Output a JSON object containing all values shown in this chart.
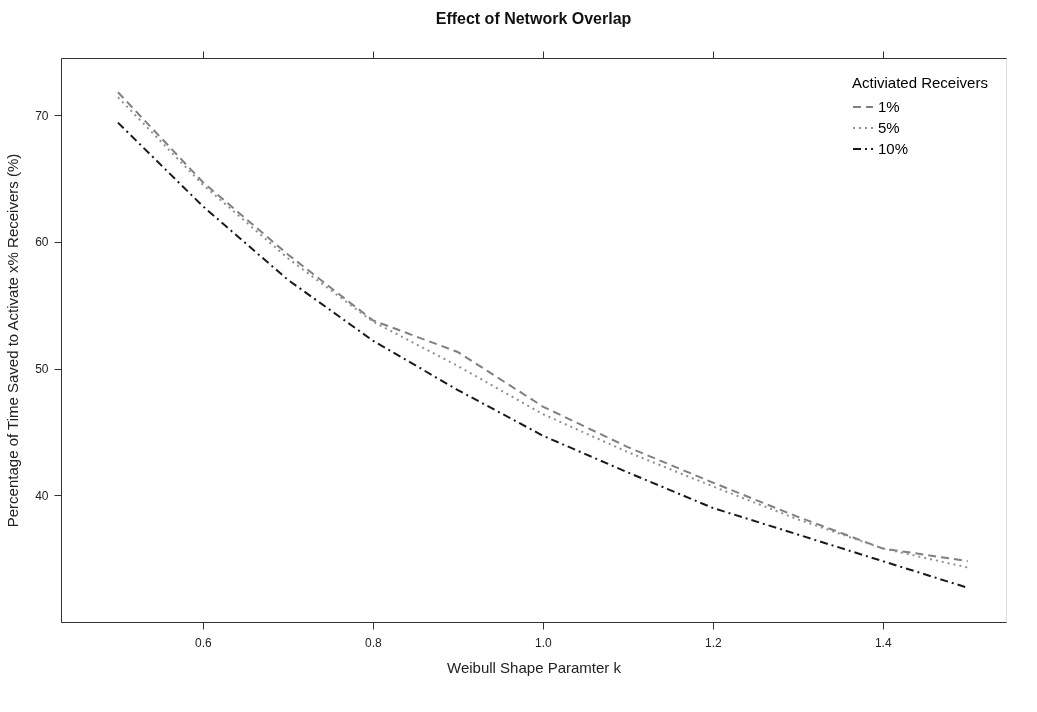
{
  "chart_data": {
    "type": "line",
    "title": "Effect of Network Overlap",
    "xlabel": "Weibull Shape Paramter k",
    "ylabel": "Percentage of Time Saved to Activate x% Receivers (%)",
    "legend_title": "Activiated Receivers",
    "x": [
      0.5,
      0.6,
      0.7,
      0.8,
      0.9,
      1.0,
      1.1,
      1.2,
      1.3,
      1.4,
      1.5
    ],
    "series": [
      {
        "name": "1%",
        "color": "#808080",
        "line_style": "dashed",
        "values": [
          71.8,
          64.7,
          59.0,
          53.8,
          51.3,
          47.0,
          43.8,
          41.0,
          38.3,
          35.8,
          34.8
        ]
      },
      {
        "name": "5%",
        "color": "#909090",
        "line_style": "dotted",
        "values": [
          71.4,
          64.5,
          58.7,
          53.7,
          50.2,
          46.4,
          43.4,
          40.7,
          38.1,
          35.8,
          34.3
        ]
      },
      {
        "name": "10%",
        "color": "#1a1a1a",
        "line_style": "dashdot",
        "values": [
          69.4,
          62.8,
          57.0,
          52.2,
          48.3,
          44.7,
          41.8,
          39.0,
          36.9,
          34.8,
          32.7
        ]
      }
    ],
    "xlim": [
      0.433,
      1.545
    ],
    "ylim": [
      30,
      74.5
    ],
    "xticks": [
      0.6,
      0.8,
      {
        "value": 1,
        "label": "1.0"
      },
      1.2,
      1.4
    ],
    "yticks": [
      40,
      50,
      60,
      70
    ],
    "grid": false,
    "legend": "top right"
  }
}
